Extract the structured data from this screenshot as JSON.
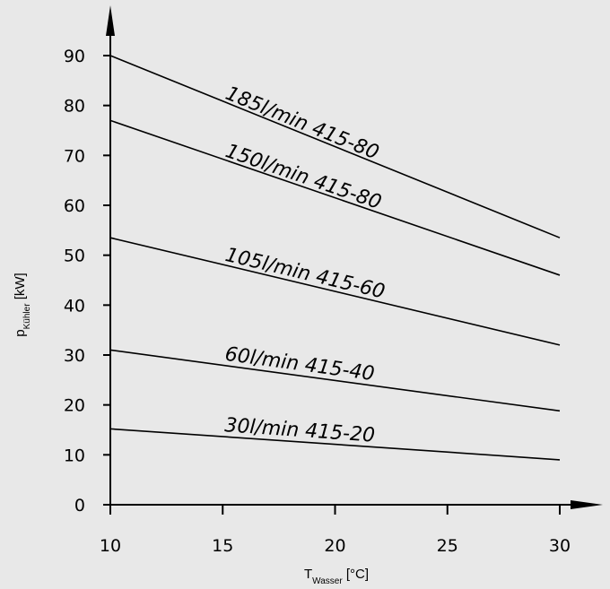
{
  "chart_data": {
    "type": "line",
    "xlabel": {
      "main": "T",
      "sub": "Wasser",
      "unit": " [°C]"
    },
    "ylabel": {
      "main": "p",
      "sub": "Kühler",
      "unit": " [kW]"
    },
    "xlim": [
      10,
      30
    ],
    "ylim": [
      0,
      90
    ],
    "x_ticks": [
      10,
      15,
      20,
      25,
      30
    ],
    "y_ticks": [
      0,
      10,
      20,
      30,
      40,
      50,
      60,
      70,
      80,
      90
    ],
    "grid": false,
    "series": [
      {
        "name": "185l/min  415-80",
        "x": [
          10,
          30
        ],
        "y": [
          90,
          53.5
        ]
      },
      {
        "name": "150l/min  415-80",
        "x": [
          10,
          30
        ],
        "y": [
          77,
          46
        ]
      },
      {
        "name": "105l/min  415-60",
        "x": [
          10,
          30
        ],
        "y": [
          53.5,
          32
        ]
      },
      {
        "name": "60l/min  415-40",
        "x": [
          10,
          30
        ],
        "y": [
          31,
          18.8
        ]
      },
      {
        "name": "30l/min 415-20",
        "x": [
          10,
          30
        ],
        "y": [
          15.2,
          9
        ]
      }
    ]
  }
}
